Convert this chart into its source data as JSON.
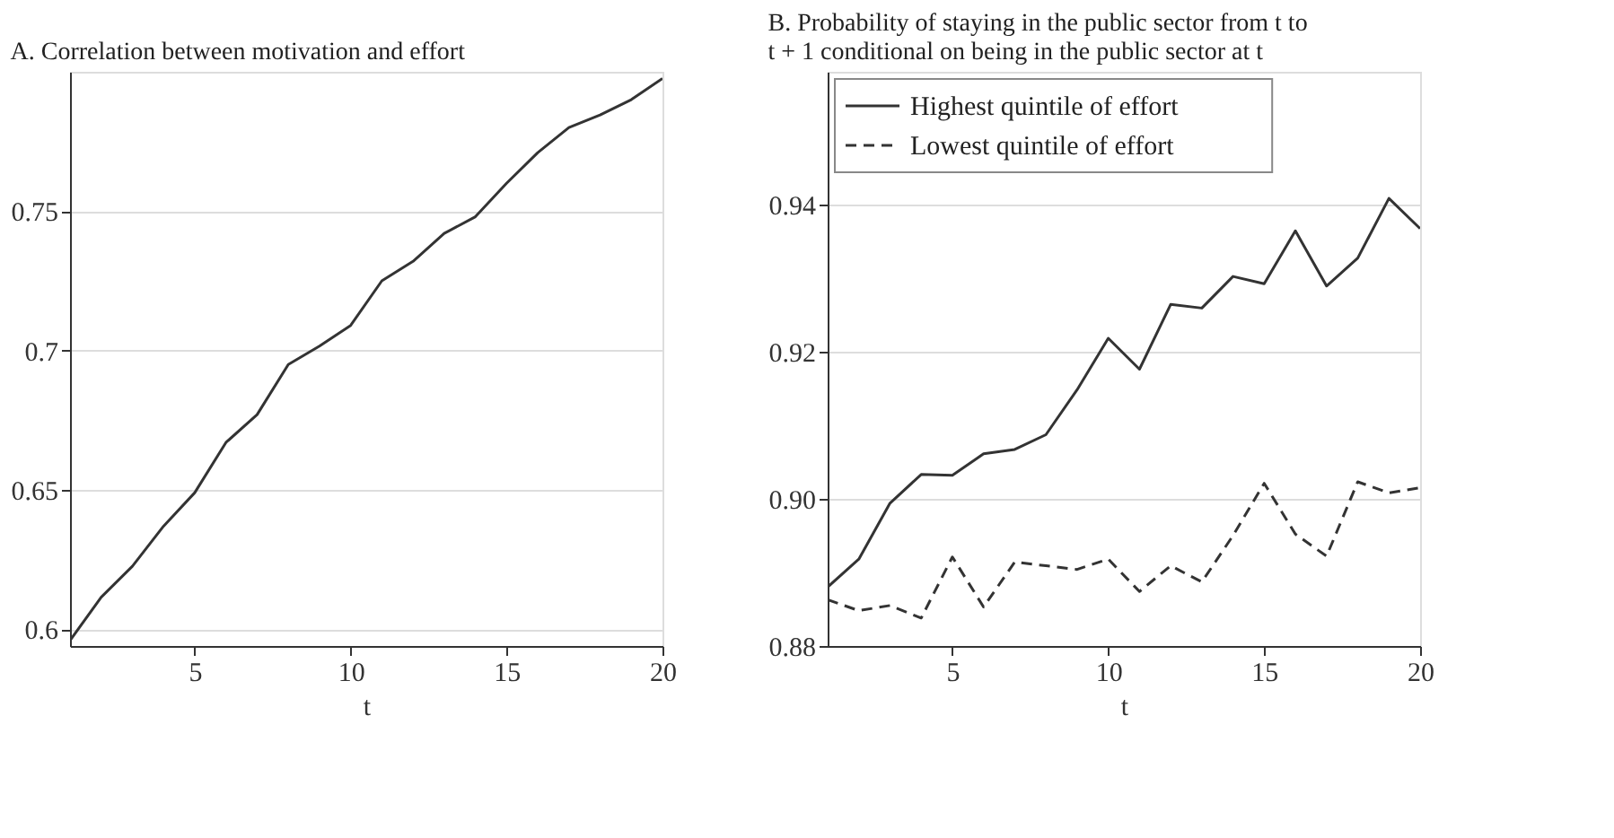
{
  "chart_data": [
    {
      "type": "line",
      "title": [
        "A. Correlation between motivation and effort"
      ],
      "xlabel": "t",
      "x": [
        1,
        2,
        3,
        4,
        5,
        6,
        7,
        8,
        9,
        10,
        11,
        12,
        13,
        14,
        15,
        16,
        17,
        18,
        19,
        20
      ],
      "series": [
        {
          "color": "#333333",
          "line_style": "solid",
          "values": [
            0.596,
            0.6115,
            0.6226,
            0.637,
            0.649,
            0.667,
            0.677,
            0.695,
            0.7016,
            0.709,
            0.725,
            0.732,
            0.742,
            0.748,
            0.76,
            0.771,
            0.78,
            0.7845,
            0.79,
            0.7976
          ]
        }
      ],
      "xlim": [
        1,
        20
      ],
      "xticks": [
        5,
        10,
        15,
        20
      ],
      "ylim": [
        0.594,
        0.8
      ],
      "yticks": [
        0.6,
        0.65,
        0.7,
        0.75
      ],
      "grid": "y",
      "legend": false
    },
    {
      "type": "line",
      "title": [
        "B. Probability of staying in the public sector from t to",
        "t + 1 conditional on being in the public sector at t"
      ],
      "xlabel": "t",
      "x": [
        1,
        2,
        3,
        4,
        5,
        6,
        7,
        8,
        9,
        10,
        11,
        12,
        13,
        14,
        15,
        16,
        17,
        18,
        19,
        20
      ],
      "series": [
        {
          "name": "Highest quintile of effort",
          "color": "#333333",
          "line_style": "solid",
          "values": [
            0.888,
            0.8918,
            0.8994,
            0.9033,
            0.9032,
            0.9061,
            0.9067,
            0.9087,
            0.9148,
            0.9218,
            0.9176,
            0.9264,
            0.9259,
            0.9302,
            0.9292,
            0.9364,
            0.9289,
            0.9327,
            0.9408,
            0.9367
          ]
        },
        {
          "name": "Lowest quintile of effort",
          "color": "#333333",
          "line_style": "dashed",
          "values": [
            0.8863,
            0.8848,
            0.8855,
            0.8838,
            0.8921,
            0.8853,
            0.8914,
            0.8909,
            0.8904,
            0.8918,
            0.8874,
            0.8909,
            0.8887,
            0.895,
            0.9021,
            0.8952,
            0.8922,
            0.9023,
            0.9008,
            0.9015
          ]
        }
      ],
      "xlim": [
        1,
        20
      ],
      "xticks": [
        5,
        10,
        15,
        20
      ],
      "ylim": [
        0.88,
        0.958
      ],
      "yticks": [
        0.88,
        {
          "value": 0.9,
          "label": "0.90"
        },
        0.92,
        0.94
      ],
      "grid": "y",
      "legend": "top left"
    }
  ]
}
